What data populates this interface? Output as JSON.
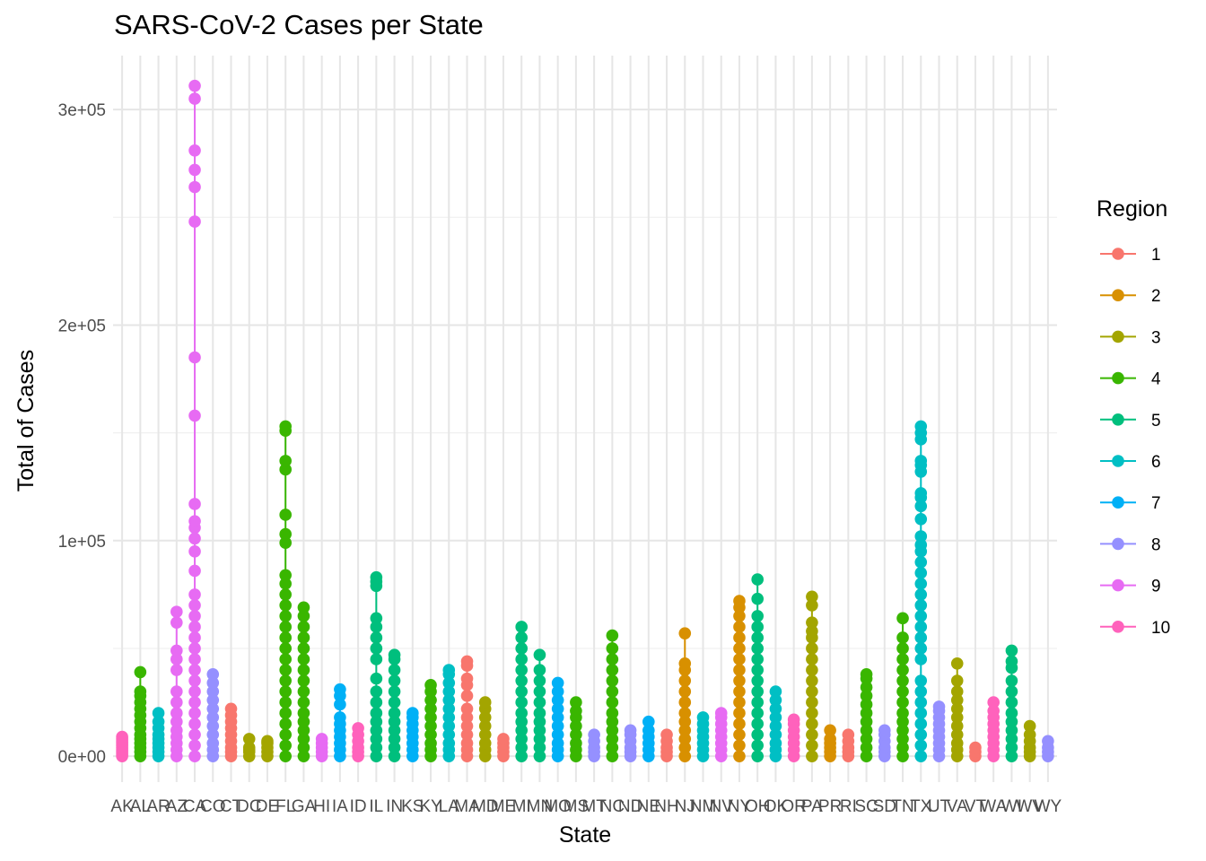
{
  "chart_data": {
    "type": "scatter",
    "title": "SARS-CoV-2 Cases per State",
    "xlabel": "State",
    "ylabel": "Total of Cases",
    "ylim": [
      -12000,
      325000
    ],
    "y_ticks": [
      0,
      100000,
      200000,
      300000
    ],
    "y_tick_labels": [
      "0e+00",
      "1e+05",
      "2e+05",
      "3e+05"
    ],
    "grid": true,
    "legend": {
      "title": "Region",
      "position": "right"
    },
    "regions": [
      {
        "name": "1",
        "color": "#F8766D"
      },
      {
        "name": "2",
        "color": "#D89000"
      },
      {
        "name": "3",
        "color": "#A3A500"
      },
      {
        "name": "4",
        "color": "#39B600"
      },
      {
        "name": "5",
        "color": "#00BF7D"
      },
      {
        "name": "6",
        "color": "#00BFC4"
      },
      {
        "name": "7",
        "color": "#00B0F6"
      },
      {
        "name": "8",
        "color": "#9590FF"
      },
      {
        "name": "9",
        "color": "#E76BF3"
      },
      {
        "name": "10",
        "color": "#FF62BC"
      }
    ],
    "states": [
      {
        "state": "AK",
        "region": 10,
        "values": [
          0,
          1000,
          2000,
          3000,
          4000,
          5000,
          6000,
          7000,
          8000,
          9000
        ]
      },
      {
        "state": "AL",
        "region": 4,
        "values": [
          0,
          2000,
          4000,
          6000,
          8000,
          10000,
          13000,
          16000,
          19000,
          22000,
          25000,
          28000,
          30000,
          39000
        ]
      },
      {
        "state": "AR",
        "region": 6,
        "values": [
          0,
          2000,
          4000,
          6000,
          8000,
          10000,
          13000,
          16000,
          20000
        ]
      },
      {
        "state": "AZ",
        "region": 9,
        "values": [
          0,
          3000,
          6000,
          9000,
          12000,
          16000,
          20000,
          25000,
          30000,
          40000,
          45000,
          49000,
          62000,
          67000
        ]
      },
      {
        "state": "CA",
        "region": 9,
        "values": [
          0,
          5000,
          10000,
          15000,
          20000,
          25000,
          30000,
          35000,
          40000,
          45000,
          50000,
          55000,
          60000,
          65000,
          70000,
          75000,
          86000,
          95000,
          101000,
          106000,
          109000,
          117000,
          158000,
          185000,
          248000,
          264000,
          272000,
          281000,
          305000,
          311000
        ]
      },
      {
        "state": "CO",
        "region": 8,
        "values": [
          0,
          3000,
          6000,
          10000,
          14000,
          18000,
          22000,
          26000,
          30000,
          34000,
          38000
        ]
      },
      {
        "state": "CT",
        "region": 1,
        "values": [
          0,
          2000,
          4000,
          7000,
          10000,
          13000,
          16000,
          19000,
          22000
        ]
      },
      {
        "state": "DC",
        "region": 3,
        "values": [
          0,
          2000,
          3000,
          4000,
          8000
        ]
      },
      {
        "state": "DE",
        "region": 3,
        "values": [
          0,
          2000,
          4000,
          6000,
          7000
        ]
      },
      {
        "state": "FL",
        "region": 4,
        "values": [
          0,
          5000,
          10000,
          15000,
          20000,
          25000,
          30000,
          35000,
          40000,
          45000,
          50000,
          55000,
          60000,
          65000,
          70000,
          75000,
          80000,
          84000,
          99000,
          103000,
          112000,
          133000,
          137000,
          151000,
          153000
        ]
      },
      {
        "state": "GA",
        "region": 4,
        "values": [
          0,
          4000,
          8000,
          12000,
          16000,
          20000,
          25000,
          30000,
          35000,
          40000,
          45000,
          50000,
          55000,
          60000,
          65000,
          69000
        ]
      },
      {
        "state": "HI",
        "region": 9,
        "values": [
          0,
          2000,
          4000,
          6000,
          8000
        ]
      },
      {
        "state": "IA",
        "region": 7,
        "values": [
          0,
          3000,
          6000,
          9000,
          12000,
          15000,
          18000,
          24000,
          28000,
          31000
        ]
      },
      {
        "state": "ID",
        "region": 10,
        "values": [
          0,
          2000,
          4000,
          7000,
          10000,
          13000
        ]
      },
      {
        "state": "IL",
        "region": 5,
        "values": [
          0,
          4000,
          8000,
          12000,
          16000,
          20000,
          25000,
          30000,
          36000,
          45000,
          50000,
          55000,
          60000,
          64000,
          79000,
          81000,
          83000
        ]
      },
      {
        "state": "IN",
        "region": 5,
        "values": [
          0,
          4000,
          8000,
          12000,
          16000,
          20000,
          25000,
          30000,
          35000,
          40000,
          45000,
          47000
        ]
      },
      {
        "state": "KS",
        "region": 7,
        "values": [
          0,
          3000,
          6000,
          9000,
          12000,
          15000,
          18000,
          20000
        ]
      },
      {
        "state": "KY",
        "region": 4,
        "values": [
          0,
          3000,
          6000,
          10000,
          14000,
          18000,
          22000,
          26000,
          30000,
          33000
        ]
      },
      {
        "state": "LA",
        "region": 6,
        "values": [
          0,
          3000,
          6000,
          10000,
          14000,
          18000,
          22000,
          26000,
          30000,
          34000,
          38000,
          40000
        ]
      },
      {
        "state": "MA",
        "region": 1,
        "values": [
          0,
          3000,
          6000,
          10000,
          14000,
          18000,
          22000,
          28000,
          33000,
          36000,
          42000,
          44000
        ]
      },
      {
        "state": "MD",
        "region": 3,
        "values": [
          0,
          3000,
          6000,
          10000,
          14000,
          18000,
          22000,
          25000
        ]
      },
      {
        "state": "ME",
        "region": 1,
        "values": [
          0,
          2000,
          4000,
          6000,
          8000
        ]
      },
      {
        "state": "MI",
        "region": 5,
        "values": [
          0,
          4000,
          8000,
          12000,
          16000,
          20000,
          25000,
          30000,
          35000,
          40000,
          45000,
          50000,
          55000,
          60000
        ]
      },
      {
        "state": "MN",
        "region": 5,
        "values": [
          0,
          4000,
          8000,
          12000,
          16000,
          20000,
          25000,
          30000,
          35000,
          40000,
          47000
        ]
      },
      {
        "state": "MO",
        "region": 7,
        "values": [
          0,
          3000,
          6000,
          10000,
          14000,
          18000,
          22000,
          26000,
          30000,
          34000
        ]
      },
      {
        "state": "MS",
        "region": 4,
        "values": [
          0,
          3000,
          6000,
          10000,
          14000,
          18000,
          21000,
          25000
        ]
      },
      {
        "state": "MT",
        "region": 8,
        "values": [
          0,
          2000,
          4000,
          7000,
          10000
        ]
      },
      {
        "state": "NC",
        "region": 4,
        "values": [
          0,
          4000,
          8000,
          12000,
          16000,
          20000,
          25000,
          30000,
          35000,
          40000,
          45000,
          50000,
          56000
        ]
      },
      {
        "state": "ND",
        "region": 8,
        "values": [
          0,
          2000,
          4000,
          7000,
          10000,
          12000
        ]
      },
      {
        "state": "NE",
        "region": 7,
        "values": [
          0,
          3000,
          6000,
          9000,
          12000,
          16000
        ]
      },
      {
        "state": "NH",
        "region": 1,
        "values": [
          0,
          2000,
          4000,
          7000,
          10000
        ]
      },
      {
        "state": "NJ",
        "region": 2,
        "values": [
          0,
          4000,
          8000,
          12000,
          16000,
          20000,
          25000,
          30000,
          35000,
          40000,
          43000,
          57000
        ]
      },
      {
        "state": "NM",
        "region": 6,
        "values": [
          0,
          3000,
          6000,
          9000,
          12000,
          15000,
          18000
        ]
      },
      {
        "state": "NV",
        "region": 9,
        "values": [
          0,
          3000,
          6000,
          9000,
          12000,
          15000,
          18000,
          20000
        ]
      },
      {
        "state": "NY",
        "region": 2,
        "values": [
          0,
          5000,
          10000,
          15000,
          20000,
          25000,
          30000,
          35000,
          40000,
          45000,
          50000,
          55000,
          60000,
          65000,
          69000,
          72000
        ]
      },
      {
        "state": "OH",
        "region": 5,
        "values": [
          0,
          5000,
          10000,
          15000,
          20000,
          25000,
          30000,
          35000,
          40000,
          45000,
          50000,
          55000,
          60000,
          65000,
          73000,
          82000
        ]
      },
      {
        "state": "OK",
        "region": 6,
        "values": [
          0,
          3000,
          6000,
          10000,
          14000,
          18000,
          22000,
          26000,
          30000
        ]
      },
      {
        "state": "OR",
        "region": 10,
        "values": [
          0,
          3000,
          6000,
          9000,
          12000,
          15000,
          17000
        ]
      },
      {
        "state": "PA",
        "region": 3,
        "values": [
          0,
          5000,
          10000,
          15000,
          20000,
          25000,
          30000,
          35000,
          40000,
          45000,
          50000,
          55000,
          58000,
          62000,
          70000,
          74000
        ]
      },
      {
        "state": "PR",
        "region": 2,
        "values": [
          0,
          2000,
          4000,
          6000,
          8000,
          12000
        ]
      },
      {
        "state": "RI",
        "region": 1,
        "values": [
          0,
          2000,
          4000,
          7000,
          10000
        ]
      },
      {
        "state": "SC",
        "region": 4,
        "values": [
          0,
          4000,
          8000,
          12000,
          16000,
          20000,
          24000,
          28000,
          32000,
          36000,
          38000
        ]
      },
      {
        "state": "SD",
        "region": 8,
        "values": [
          0,
          2000,
          4000,
          7000,
          10000,
          12000
        ]
      },
      {
        "state": "TN",
        "region": 4,
        "values": [
          0,
          4000,
          8000,
          12000,
          16000,
          20000,
          25000,
          30000,
          35000,
          40000,
          45000,
          50000,
          55000,
          64000
        ]
      },
      {
        "state": "TX",
        "region": 6,
        "values": [
          0,
          5000,
          10000,
          15000,
          20000,
          25000,
          30000,
          35000,
          45000,
          50000,
          55000,
          60000,
          65000,
          70000,
          75000,
          80000,
          85000,
          90000,
          95000,
          98000,
          102000,
          110000,
          116000,
          120000,
          122000,
          132000,
          135000,
          137000,
          147000,
          150000,
          153000
        ]
      },
      {
        "state": "UT",
        "region": 8,
        "values": [
          0,
          3000,
          6000,
          9000,
          12000,
          15000,
          18000,
          21000,
          23000
        ]
      },
      {
        "state": "VA",
        "region": 3,
        "values": [
          0,
          3000,
          6000,
          10000,
          14000,
          18000,
          22000,
          26000,
          30000,
          35000,
          43000
        ]
      },
      {
        "state": "VT",
        "region": 1,
        "values": [
          0,
          2000,
          4000
        ]
      },
      {
        "state": "WA",
        "region": 10,
        "values": [
          0,
          3000,
          6000,
          9000,
          12000,
          15000,
          18000,
          21000,
          25000
        ]
      },
      {
        "state": "WI",
        "region": 5,
        "values": [
          0,
          4000,
          8000,
          12000,
          16000,
          20000,
          25000,
          30000,
          35000,
          41000,
          44000,
          49000
        ]
      },
      {
        "state": "WV",
        "region": 3,
        "values": [
          0,
          2000,
          4000,
          7000,
          10000,
          14000
        ]
      },
      {
        "state": "WY",
        "region": 8,
        "values": [
          0,
          2000,
          4000,
          7000
        ]
      }
    ]
  }
}
